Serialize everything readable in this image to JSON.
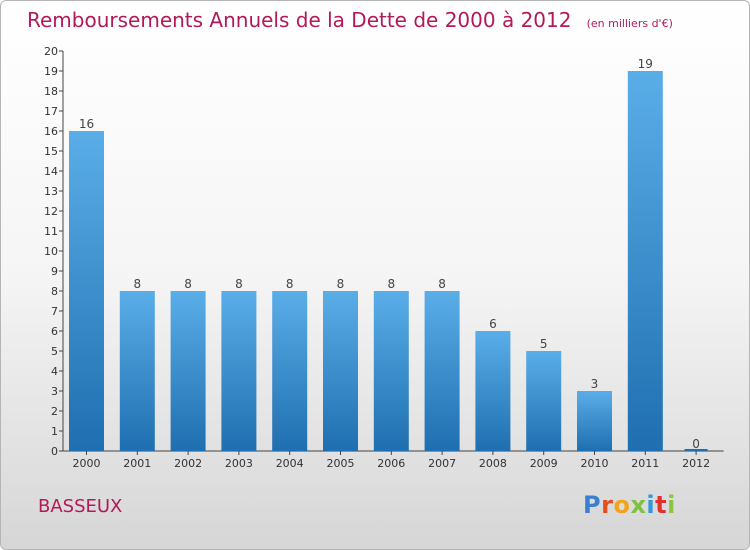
{
  "header": {
    "title": "Remboursements Annuels de la Dette de 2000 à 2012",
    "subtitle": "(en milliers d'€)"
  },
  "footer": {
    "commune": "BASSEUX",
    "logo_letters": [
      "P",
      "r",
      "o",
      "x",
      "i",
      "t",
      "i"
    ],
    "logo_colors": [
      "#3a7fd0",
      "#e84d1c",
      "#f2a21c",
      "#7cc23a",
      "#2f9ad8",
      "#e0312d",
      "#8cc63e"
    ]
  },
  "chart_data": {
    "type": "bar",
    "title": "Remboursements Annuels de la Dette de 2000 à 2012",
    "subtitle": "(en milliers d'€)",
    "categories": [
      "2000",
      "2001",
      "2002",
      "2003",
      "2004",
      "2005",
      "2006",
      "2007",
      "2008",
      "2009",
      "2010",
      "2011",
      "2012"
    ],
    "values": [
      16,
      8,
      8,
      8,
      8,
      8,
      8,
      8,
      6,
      5,
      3,
      19,
      0
    ],
    "data_labels": [
      "16",
      "8",
      "8",
      "8",
      "8",
      "8",
      "8",
      "8",
      "6",
      "5",
      "3",
      "19",
      "0"
    ],
    "yticks": [
      "0",
      "1",
      "2",
      "3",
      "4",
      "5",
      "6",
      "7",
      "8",
      "9",
      "10",
      "11",
      "12",
      "13",
      "14",
      "15",
      "16",
      "17",
      "18",
      "19",
      "20"
    ],
    "ylim": [
      0,
      20
    ],
    "bar_color_top": "#5aaee8",
    "bar_color_bottom": "#1f6fb0",
    "grid": false,
    "legend": "none"
  }
}
